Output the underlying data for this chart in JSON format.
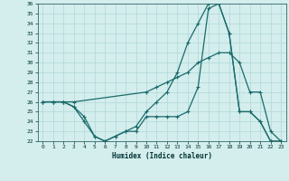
{
  "xlabel": "Humidex (Indice chaleur)",
  "bg_color": "#d4eded",
  "grid_color": "#b0d8d8",
  "line_color": "#1a6b6b",
  "xlim": [
    -0.5,
    23.5
  ],
  "ylim": [
    22,
    36
  ],
  "yticks": [
    22,
    23,
    24,
    25,
    26,
    27,
    28,
    29,
    30,
    31,
    32,
    33,
    34,
    35,
    36
  ],
  "xticks": [
    0,
    1,
    2,
    3,
    4,
    5,
    6,
    7,
    8,
    9,
    10,
    11,
    12,
    13,
    14,
    15,
    16,
    17,
    18,
    19,
    20,
    21,
    22,
    23
  ],
  "line1_x": [
    0,
    1,
    2,
    3,
    10,
    11,
    12,
    13,
    14,
    15,
    16,
    17,
    18,
    19,
    20,
    21,
    22,
    23
  ],
  "line1_y": [
    26,
    26,
    26,
    26,
    27,
    27.5,
    28,
    28.5,
    29,
    30,
    30.5,
    31,
    31,
    30,
    27,
    27,
    23,
    22
  ],
  "line2_x": [
    0,
    1,
    2,
    3,
    4,
    5,
    6,
    7,
    8,
    9,
    10,
    11,
    12,
    13,
    14,
    15,
    16,
    17,
    18,
    19,
    20,
    21,
    22,
    23
  ],
  "line2_y": [
    26,
    26,
    26,
    25.5,
    24.5,
    22.5,
    22,
    22.5,
    23,
    23,
    24.5,
    24.5,
    24.5,
    24.5,
    25,
    27.5,
    35.5,
    36,
    33,
    25,
    25,
    24,
    22,
    22
  ],
  "line3_x": [
    0,
    1,
    2,
    3,
    4,
    5,
    6,
    7,
    8,
    9,
    10,
    11,
    12,
    13,
    14,
    15,
    16,
    17,
    18,
    19,
    20,
    21,
    22,
    23
  ],
  "line3_y": [
    26,
    26,
    26,
    25.5,
    24,
    22.5,
    22,
    22.5,
    23,
    23.5,
    25,
    26,
    27,
    29,
    32,
    34,
    36,
    36,
    33,
    25,
    25,
    24,
    22,
    22
  ]
}
